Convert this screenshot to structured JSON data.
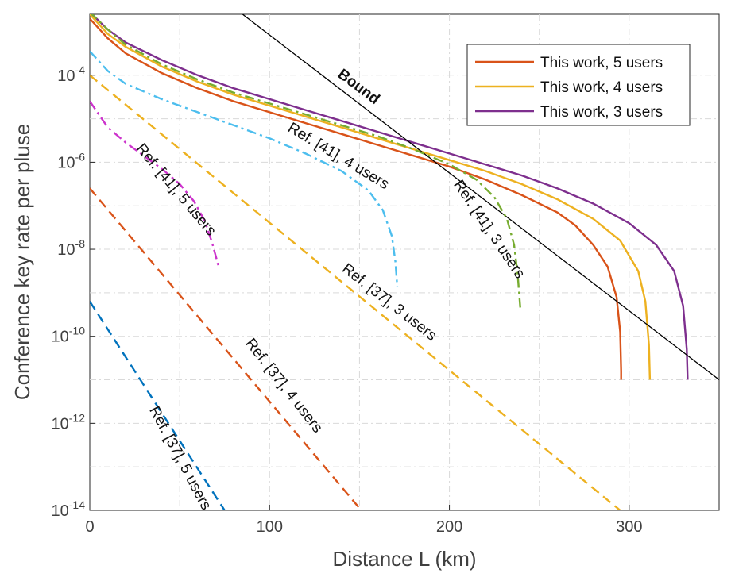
{
  "chart_data": {
    "type": "line",
    "title": "",
    "xlabel": "Distance L (km)",
    "ylabel": "Conference key rate per pluse",
    "xlim": [
      0,
      350
    ],
    "ylim_exp": [
      -14,
      -2.6
    ],
    "y_scale": "log",
    "x_ticks": [
      "0",
      "100",
      "200",
      "300"
    ],
    "y_tick_exponents": [
      "-4",
      "-6",
      "-8",
      "-10",
      "-12",
      "-14"
    ],
    "y_tick_base": "10",
    "grid": true,
    "legend_position": "top-right",
    "series": [
      {
        "name": "This work, 5 users",
        "color": "#D95319",
        "style": "solid",
        "in_legend": true,
        "points": [
          [
            0,
            -2.7
          ],
          [
            10,
            -3.15
          ],
          [
            20,
            -3.5
          ],
          [
            40,
            -3.95
          ],
          [
            60,
            -4.3
          ],
          [
            80,
            -4.6
          ],
          [
            100,
            -4.85
          ],
          [
            120,
            -5.1
          ],
          [
            140,
            -5.35
          ],
          [
            160,
            -5.6
          ],
          [
            180,
            -5.85
          ],
          [
            200,
            -6.1
          ],
          [
            220,
            -6.4
          ],
          [
            240,
            -6.75
          ],
          [
            260,
            -7.15
          ],
          [
            270,
            -7.45
          ],
          [
            280,
            -7.9
          ],
          [
            288,
            -8.4
          ],
          [
            293,
            -9.1
          ],
          [
            295,
            -9.9
          ],
          [
            295.5,
            -10.8
          ],
          [
            295.5,
            -11.0
          ]
        ]
      },
      {
        "name": "This work, 4 users",
        "color": "#EDB120",
        "style": "solid",
        "in_legend": true,
        "points": [
          [
            0,
            -2.6
          ],
          [
            10,
            -3.05
          ],
          [
            20,
            -3.35
          ],
          [
            40,
            -3.8
          ],
          [
            60,
            -4.15
          ],
          [
            80,
            -4.45
          ],
          [
            100,
            -4.7
          ],
          [
            120,
            -4.95
          ],
          [
            140,
            -5.2
          ],
          [
            160,
            -5.45
          ],
          [
            180,
            -5.7
          ],
          [
            200,
            -5.95
          ],
          [
            220,
            -6.2
          ],
          [
            240,
            -6.5
          ],
          [
            260,
            -6.85
          ],
          [
            280,
            -7.3
          ],
          [
            295,
            -7.8
          ],
          [
            305,
            -8.5
          ],
          [
            309,
            -9.2
          ],
          [
            311,
            -10.2
          ],
          [
            311.5,
            -11.0
          ]
        ]
      },
      {
        "name": "This work, 3 users",
        "color": "#7E2F8E",
        "style": "solid",
        "in_legend": true,
        "points": [
          [
            0,
            -2.55
          ],
          [
            10,
            -2.95
          ],
          [
            20,
            -3.25
          ],
          [
            40,
            -3.65
          ],
          [
            60,
            -4.0
          ],
          [
            80,
            -4.3
          ],
          [
            100,
            -4.55
          ],
          [
            120,
            -4.8
          ],
          [
            140,
            -5.05
          ],
          [
            160,
            -5.3
          ],
          [
            180,
            -5.55
          ],
          [
            200,
            -5.8
          ],
          [
            220,
            -6.05
          ],
          [
            240,
            -6.3
          ],
          [
            260,
            -6.6
          ],
          [
            280,
            -6.95
          ],
          [
            300,
            -7.4
          ],
          [
            315,
            -7.9
          ],
          [
            325,
            -8.5
          ],
          [
            330,
            -9.3
          ],
          [
            332,
            -10.3
          ],
          [
            332.5,
            -11.0
          ]
        ]
      },
      {
        "name": "Bound",
        "color": "#000000",
        "style": "solid",
        "in_legend": false,
        "points": [
          [
            85,
            -2.6
          ],
          [
            350,
            -11.0
          ]
        ]
      },
      {
        "name": "Ref. [41], 3 users",
        "color": "#77AC30",
        "style": "dashdot",
        "in_legend": false,
        "points": [
          [
            0,
            -2.55
          ],
          [
            10,
            -2.95
          ],
          [
            20,
            -3.3
          ],
          [
            40,
            -3.75
          ],
          [
            60,
            -4.1
          ],
          [
            80,
            -4.4
          ],
          [
            100,
            -4.65
          ],
          [
            120,
            -4.9
          ],
          [
            140,
            -5.15
          ],
          [
            160,
            -5.4
          ],
          [
            180,
            -5.7
          ],
          [
            200,
            -6.05
          ],
          [
            215,
            -6.4
          ],
          [
            225,
            -6.8
          ],
          [
            232,
            -7.3
          ],
          [
            236,
            -7.9
          ],
          [
            238,
            -8.6
          ],
          [
            239.5,
            -9.4
          ]
        ]
      },
      {
        "name": "Ref. [41], 4 users",
        "color": "#4DBEEE",
        "style": "dashdot",
        "in_legend": false,
        "points": [
          [
            0,
            -3.45
          ],
          [
            10,
            -3.9
          ],
          [
            20,
            -4.2
          ],
          [
            40,
            -4.55
          ],
          [
            60,
            -4.85
          ],
          [
            80,
            -5.15
          ],
          [
            100,
            -5.45
          ],
          [
            120,
            -5.8
          ],
          [
            140,
            -6.2
          ],
          [
            155,
            -6.65
          ],
          [
            163,
            -7.1
          ],
          [
            168,
            -7.7
          ],
          [
            170,
            -8.3
          ],
          [
            171,
            -8.85
          ]
        ]
      },
      {
        "name": "Ref. [41], 5 users",
        "color": "#CC33CC",
        "style": "dashdot",
        "in_legend": false,
        "points": [
          [
            0,
            -4.6
          ],
          [
            10,
            -5.2
          ],
          [
            20,
            -5.55
          ],
          [
            30,
            -5.85
          ],
          [
            40,
            -6.15
          ],
          [
            50,
            -6.5
          ],
          [
            58,
            -6.9
          ],
          [
            64,
            -7.35
          ],
          [
            68,
            -7.85
          ],
          [
            71,
            -8.3
          ],
          [
            72,
            -8.45
          ]
        ]
      },
      {
        "name": "Ref. [37], 3 users",
        "color": "#EDB120",
        "style": "dashed",
        "in_legend": false,
        "points": [
          [
            0,
            -4.0
          ],
          [
            295,
            -14.0
          ]
        ]
      },
      {
        "name": "Ref. [37], 4 users",
        "color": "#D95319",
        "style": "dashed",
        "in_legend": false,
        "points": [
          [
            0,
            -6.6
          ],
          [
            151,
            -14.0
          ]
        ]
      },
      {
        "name": "Ref. [37], 5 users",
        "color": "#0072BD",
        "style": "dashed",
        "in_legend": false,
        "points": [
          [
            0,
            -9.2
          ],
          [
            75,
            -14.0
          ]
        ]
      }
    ],
    "annotations": [
      {
        "text": "Bound",
        "x": 148,
        "y_exp": -4.35,
        "angle": 37,
        "bold": true
      },
      {
        "text": "Ref. [41], 4 users",
        "x": 137,
        "y_exp": -5.95,
        "angle": 31,
        "bold": false
      },
      {
        "text": "Ref. [41], 5 users",
        "x": 46,
        "y_exp": -6.7,
        "angle": 50,
        "bold": false
      },
      {
        "text": "Ref. [41], 3 users",
        "x": 220,
        "y_exp": -7.6,
        "angle": 56,
        "bold": false
      },
      {
        "text": "Ref. [37], 3 users",
        "x": 165,
        "y_exp": -9.3,
        "angle": 38,
        "bold": false
      },
      {
        "text": "Ref. [37], 4 users",
        "x": 106,
        "y_exp": -11.2,
        "angle": 52,
        "bold": false
      },
      {
        "text": "Ref. [37], 5 users",
        "x": 48,
        "y_exp": -12.85,
        "angle": 62,
        "bold": false
      }
    ]
  }
}
